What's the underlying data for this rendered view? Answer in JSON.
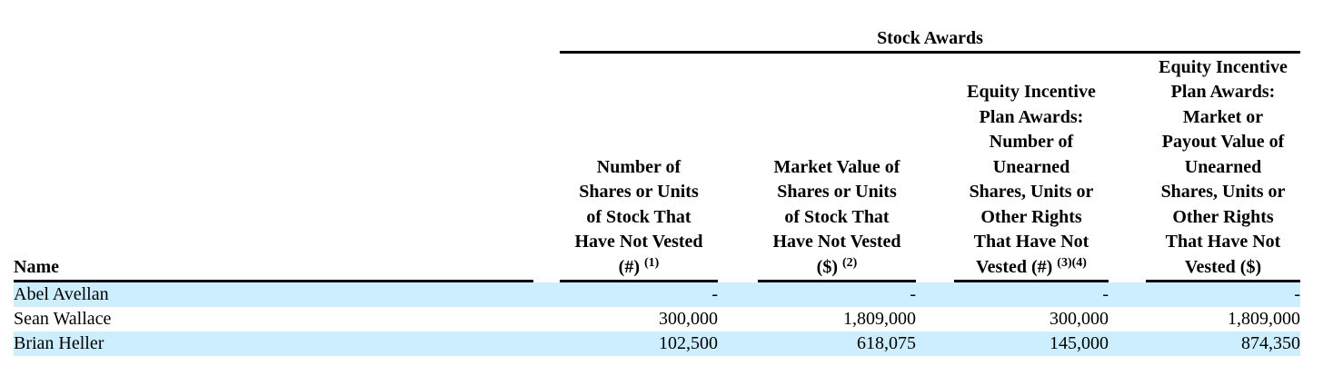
{
  "group_header": "Stock Awards",
  "name_header": "Name",
  "columns": [
    {
      "lines": [
        "Number of",
        "Shares or Units",
        "of Stock That",
        "Have Not Vested"
      ],
      "last_line": "(#)",
      "footnote": "(1)"
    },
    {
      "lines": [
        "Market Value of",
        "Shares or Units",
        "of Stock That",
        "Have Not Vested"
      ],
      "last_line": "($)",
      "footnote": "(2)"
    },
    {
      "lines": [
        "Equity Incentive",
        "Plan Awards:",
        "Number of",
        "Unearned",
        "Shares, Units or",
        "Other Rights",
        "That Have Not"
      ],
      "last_line": "Vested (#)",
      "footnote": "(3)(4)"
    },
    {
      "lines": [
        "Equity Incentive",
        "Plan Awards:",
        "Market or",
        "Payout Value of",
        "Unearned",
        "Shares, Units or",
        "Other Rights",
        "That Have Not"
      ],
      "last_line": "Vested ($)",
      "footnote": ""
    }
  ],
  "rows": [
    {
      "name": "Abel Avellan",
      "values": [
        "-",
        "-",
        "-",
        "-"
      ],
      "shaded": true
    },
    {
      "name": "Sean Wallace",
      "values": [
        "300,000",
        "1,809,000",
        "300,000",
        "1,809,000"
      ],
      "shaded": false
    },
    {
      "name": "Brian Heller",
      "values": [
        "102,500",
        "618,075",
        "145,000",
        "874,350"
      ],
      "shaded": true
    }
  ],
  "colors": {
    "row_shade": "#cceeff",
    "rule": "#000000"
  }
}
